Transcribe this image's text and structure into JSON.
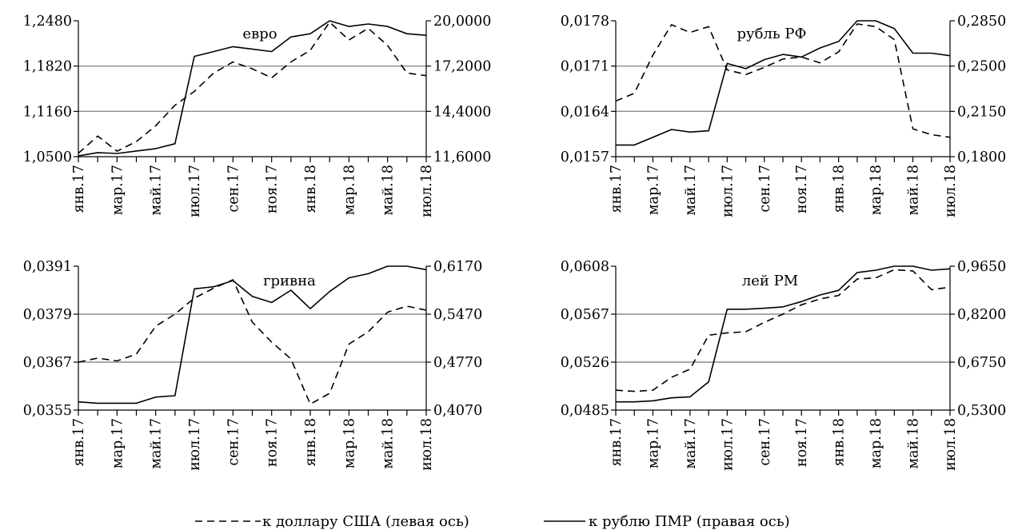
{
  "chart_data": [
    {
      "type": "line",
      "title": "евро",
      "categories": [
        "янв.17",
        "фев.17",
        "мар.17",
        "апр.17",
        "май.17",
        "июн.17",
        "июл.17",
        "авг.17",
        "сен.17",
        "окт.17",
        "ноя.17",
        "дек.17",
        "янв.18",
        "фев.18",
        "мар.18",
        "апр.18",
        "май.18",
        "июн.18",
        "июл.18"
      ],
      "tick_labels": [
        "янв.17",
        "мар.17",
        "май.17",
        "июл.17",
        "сен.17",
        "ноя.17",
        "янв.18",
        "мар.18",
        "май.18",
        "июл.18"
      ],
      "y_left": {
        "min": 1.05,
        "max": 1.248,
        "ticks": [
          "1,0500",
          "1,1160",
          "1,1820",
          "1,2480"
        ]
      },
      "y_right": {
        "min": 11.6,
        "max": 20.0,
        "ticks": [
          "11,6000",
          "14,4000",
          "17,2000",
          "20,0000"
        ]
      },
      "series": [
        {
          "axis": "left",
          "style": "dashed",
          "values": [
            1.055,
            1.08,
            1.058,
            1.072,
            1.095,
            1.125,
            1.145,
            1.172,
            1.188,
            1.178,
            1.165,
            1.188,
            1.205,
            1.246,
            1.22,
            1.237,
            1.212,
            1.172,
            1.168
          ]
        },
        {
          "axis": "right",
          "style": "solid",
          "values": [
            11.65,
            11.85,
            11.8,
            11.95,
            12.1,
            12.4,
            17.8,
            18.1,
            18.4,
            18.25,
            18.1,
            19.0,
            19.2,
            20.0,
            19.65,
            19.8,
            19.65,
            19.2,
            19.1
          ]
        }
      ]
    },
    {
      "type": "line",
      "title": "рубль РФ",
      "categories": [
        "янв.17",
        "фев.17",
        "мар.17",
        "апр.17",
        "май.17",
        "июн.17",
        "июл.17",
        "авг.17",
        "сен.17",
        "окт.17",
        "ноя.17",
        "дек.17",
        "янв.18",
        "фев.18",
        "мар.18",
        "апр.18",
        "май.18",
        "июн.18",
        "июл.18"
      ],
      "tick_labels": [
        "янв.17",
        "мар.17",
        "май.17",
        "июл.17",
        "сен.17",
        "ноя.17",
        "янв.18",
        "мар.18",
        "май.18",
        "июл.18"
      ],
      "y_left": {
        "min": 0.0157,
        "max": 0.0178,
        "ticks": [
          "0,0157",
          "0,0164",
          "0,0171",
          "0,0178"
        ]
      },
      "y_right": {
        "min": 0.18,
        "max": 0.285,
        "ticks": [
          "0,1800",
          "0,2150",
          "0,2500",
          "0,2850"
        ]
      },
      "series": [
        {
          "axis": "left",
          "style": "dashed",
          "values": [
            0.01656,
            0.01668,
            0.01727,
            0.01774,
            0.01762,
            0.01771,
            0.01704,
            0.01697,
            0.01708,
            0.01721,
            0.01724,
            0.01715,
            0.01732,
            0.01775,
            0.01771,
            0.01751,
            0.01613,
            0.01604,
            0.016
          ]
        },
        {
          "axis": "right",
          "style": "solid",
          "values": [
            0.189,
            0.189,
            0.195,
            0.201,
            0.199,
            0.2,
            0.252,
            0.248,
            0.255,
            0.259,
            0.257,
            0.264,
            0.269,
            0.285,
            0.285,
            0.279,
            0.26,
            0.26,
            0.258
          ]
        }
      ]
    },
    {
      "type": "line",
      "title": "гривна",
      "categories": [
        "янв.17",
        "фев.17",
        "мар.17",
        "апр.17",
        "май.17",
        "июн.17",
        "июл.17",
        "авг.17",
        "сен.17",
        "окт.17",
        "ноя.17",
        "дек.17",
        "янв.18",
        "фев.18",
        "мар.18",
        "апр.18",
        "май.18",
        "июн.18",
        "июл.18"
      ],
      "tick_labels": [
        "янв.17",
        "мар.17",
        "май.17",
        "июл.17",
        "сен.17",
        "ноя.17",
        "янв.18",
        "мар.18",
        "май.18",
        "июл.18"
      ],
      "y_left": {
        "min": 0.0355,
        "max": 0.0391,
        "ticks": [
          "0,0355",
          "0,0367",
          "0,0379",
          "0,0391"
        ]
      },
      "y_right": {
        "min": 0.407,
        "max": 0.617,
        "ticks": [
          "0,4070",
          "0,4770",
          "0,5470",
          "0,6170"
        ]
      },
      "series": [
        {
          "axis": "left",
          "style": "dashed",
          "values": [
            0.0367,
            0.0368,
            0.03673,
            0.0369,
            0.0376,
            0.0379,
            0.0383,
            0.03855,
            0.03876,
            0.0377,
            0.0372,
            0.03678,
            0.03565,
            0.03592,
            0.03715,
            0.03746,
            0.03795,
            0.0381,
            0.038
          ]
        },
        {
          "axis": "right",
          "style": "solid",
          "values": [
            0.419,
            0.417,
            0.417,
            0.417,
            0.426,
            0.428,
            0.584,
            0.587,
            0.596,
            0.573,
            0.564,
            0.582,
            0.555,
            0.58,
            0.6,
            0.606,
            0.617,
            0.617,
            0.612
          ]
        }
      ]
    },
    {
      "type": "line",
      "title": "лей РМ",
      "categories": [
        "янв.17",
        "фев.17",
        "мар.17",
        "апр.17",
        "май.17",
        "июн.17",
        "июл.17",
        "авг.17",
        "сен.17",
        "окт.17",
        "ноя.17",
        "дек.17",
        "янв.18",
        "фев.18",
        "мар.18",
        "апр.18",
        "май.18",
        "июн.18",
        "июл.18"
      ],
      "tick_labels": [
        "янв.17",
        "мар.17",
        "май.17",
        "июл.17",
        "сен.17",
        "ноя.17",
        "янв.18",
        "мар.18",
        "май.18",
        "июл.18"
      ],
      "y_left": {
        "min": 0.0485,
        "max": 0.0608,
        "ticks": [
          "0,0485",
          "0,0526",
          "0,0567",
          "0,0608"
        ]
      },
      "y_right": {
        "min": 0.53,
        "max": 0.965,
        "ticks": [
          "0,5300",
          "0,6750",
          "0,8200",
          "0,9650"
        ]
      },
      "series": [
        {
          "axis": "left",
          "style": "dashed",
          "values": [
            0.0502,
            0.0501,
            0.0502,
            0.0513,
            0.052,
            0.0549,
            0.0551,
            0.0552,
            0.056,
            0.0567,
            0.0575,
            0.058,
            0.0583,
            0.0597,
            0.0598,
            0.0605,
            0.0604,
            0.0588,
            0.059
          ]
        },
        {
          "axis": "right",
          "style": "solid",
          "values": [
            0.555,
            0.555,
            0.558,
            0.567,
            0.57,
            0.615,
            0.835,
            0.835,
            0.838,
            0.842,
            0.858,
            0.878,
            0.892,
            0.946,
            0.953,
            0.965,
            0.965,
            0.953,
            0.957
          ]
        }
      ]
    }
  ],
  "legend": {
    "dashed_label": "к доллару США (левая ось)",
    "solid_label": "к рублю ПМР (правая ось)",
    "placement": "bottom-center"
  }
}
